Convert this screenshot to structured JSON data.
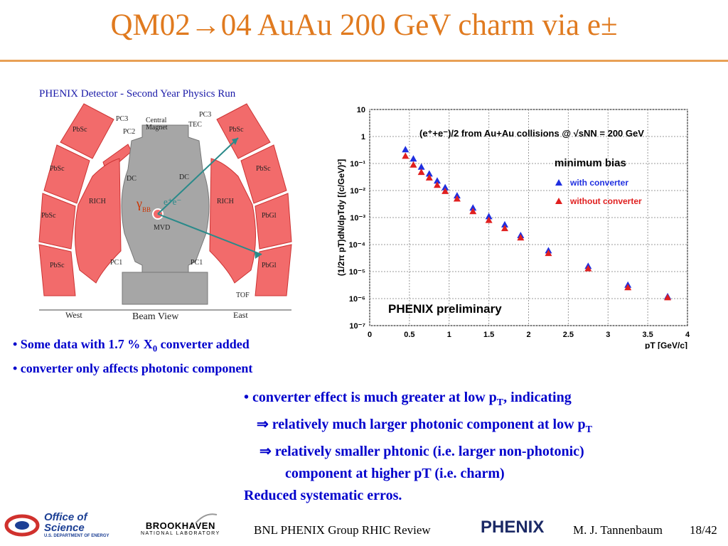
{
  "slide": {
    "title": "QM02→04 AuAu 200 GeV charm via e±"
  },
  "detector": {
    "header": "PHENIX Detector - Second Year Physics Run",
    "labels": {
      "pbsc": "PbSc",
      "pbgl": "PbGl",
      "pc3": "PC3",
      "pc2": "PC2",
      "pc1": "PC1",
      "tec": "TEC",
      "central_magnet": "Central",
      "central_magnet2": "Magnet",
      "rich": "RICH",
      "dc": "DC",
      "mvd": "MVD",
      "tof": "TOF",
      "west": "West",
      "east": "East",
      "beam_view": "Beam View",
      "gamma": "γ",
      "gamma_sub": "BB",
      "ee": "e⁺e⁻"
    }
  },
  "chart_data": {
    "type": "scatter",
    "ylabel": "(1/2π pT)dN/dpTdy [(c/GeV)²]",
    "xlabel": "pT [GeV/c]",
    "header_text": "(e⁺+e⁻)/2 from Au+Au collisions @ √sNN = 200 GeV",
    "subtitle": "minimum bias",
    "watermark": "PHENIX preliminary",
    "xlim": [
      0,
      4
    ],
    "ylog": true,
    "ylim_exp": [
      -7,
      1
    ],
    "x_ticks": [
      "0",
      "0.5",
      "1",
      "1.5",
      "2",
      "2.5",
      "3",
      "3.5",
      "4"
    ],
    "y_ticks": [
      "10",
      "1",
      "10⁻¹",
      "10⁻²",
      "10⁻³",
      "10⁻⁴",
      "10⁻⁵",
      "10⁻⁶",
      "10⁻⁷"
    ],
    "series": [
      {
        "name": "with converter",
        "color": "#1f2fe0",
        "marker": "triangle",
        "x": [
          0.45,
          0.55,
          0.65,
          0.75,
          0.85,
          0.95,
          1.1,
          1.3,
          1.5,
          1.7,
          1.9,
          2.25,
          2.75,
          3.25,
          3.75
        ],
        "y": [
          0.33,
          0.15,
          0.075,
          0.042,
          0.023,
          0.013,
          0.0065,
          0.0023,
          0.0011,
          0.00055,
          0.00022,
          6e-05,
          1.6e-05,
          3.2e-06,
          1.2e-06
        ]
      },
      {
        "name": "without converter",
        "color": "#e01f1f",
        "marker": "triangle",
        "x": [
          0.45,
          0.55,
          0.65,
          0.75,
          0.85,
          0.95,
          1.1,
          1.3,
          1.5,
          1.7,
          1.9,
          2.25,
          2.75,
          3.25,
          3.75
        ],
        "y": [
          0.19,
          0.09,
          0.048,
          0.03,
          0.016,
          0.0095,
          0.005,
          0.0017,
          0.0008,
          0.0004,
          0.00018,
          4.8e-05,
          1.3e-05,
          2.6e-06,
          1.1e-06
        ]
      }
    ]
  },
  "bullets_left": {
    "b1_pre": "• Some data with 1.7 % X",
    "b1_sub": "0",
    "b1_post": " converter added",
    "b2": "• converter only affects photonic component"
  },
  "bullets_right": {
    "l1_pre": "• converter effect is much greater at low p",
    "l1_sub": "T",
    "l1_post": ", indicating",
    "l2_pre": "⇒  relatively much larger photonic component at low p",
    "l2_sub": "T",
    "l3": "⇒ relatively smaller phtonic (i.e. larger non-photonic)",
    "l4": "component at higher pT (i.e. charm)",
    "l5": "Reduced systematic erros."
  },
  "footer": {
    "office1": "Office of",
    "office2": "Science",
    "office3": "U.S. DEPARTMENT OF ENERGY",
    "bnl1": "BROOKHAVEN",
    "bnl2": "NATIONAL LABORATORY",
    "group": "BNL PHENIX Group  RHIC Review",
    "phenix": "PHENIX",
    "author": "M. J. Tannenbaum",
    "page": "18/42"
  }
}
